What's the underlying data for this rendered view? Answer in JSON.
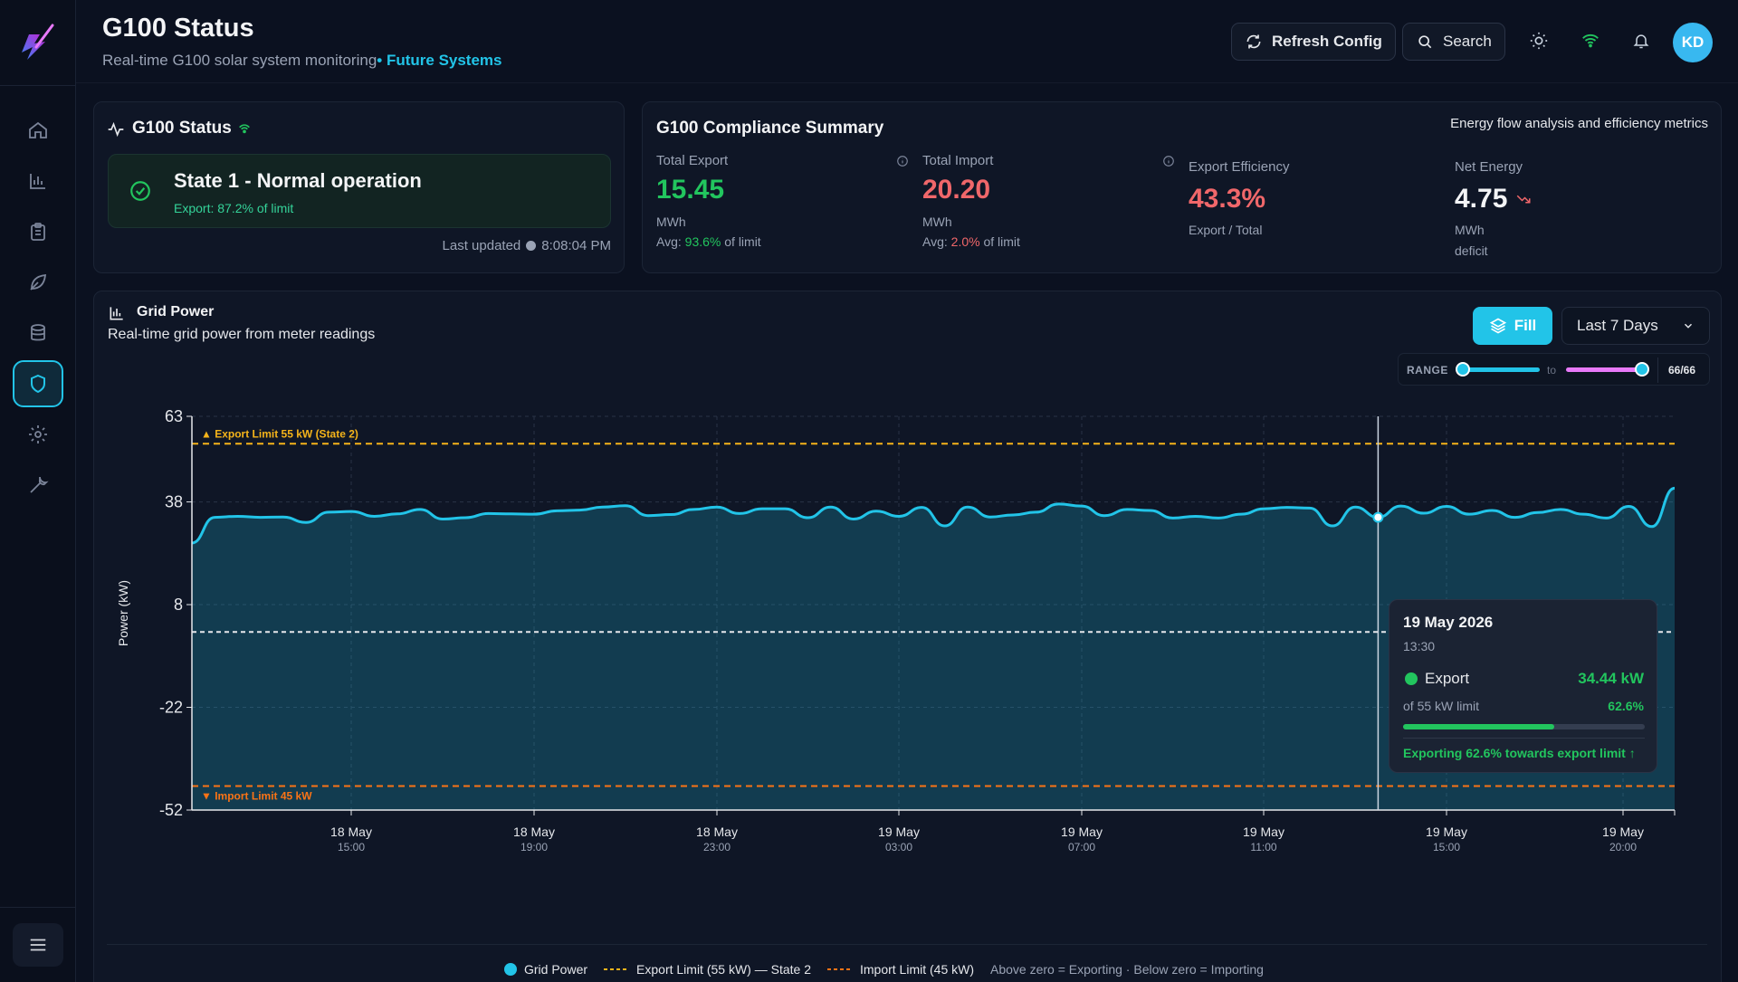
{
  "header": {
    "title": "G100 Status",
    "subtitle": "Real-time G100 solar system monitoring",
    "org": "• Future Systems",
    "refresh_label": "Refresh Config",
    "search_label": "Search",
    "avatar_initials": "KD"
  },
  "sidebar": {
    "items": [
      {
        "name": "home",
        "active": false
      },
      {
        "name": "analytics",
        "active": false
      },
      {
        "name": "reports",
        "active": false
      },
      {
        "name": "sustainability",
        "active": false
      },
      {
        "name": "database",
        "active": false
      },
      {
        "name": "compliance",
        "active": true
      },
      {
        "name": "settings",
        "active": false
      },
      {
        "name": "tools",
        "active": false
      }
    ]
  },
  "status_card": {
    "title": "G100 Status",
    "state": "State 1 - Normal operation",
    "export_note": "Export: 87.2% of limit",
    "last_updated_label": "Last updated",
    "last_updated_time": "8:08:04 PM"
  },
  "summary": {
    "title": "G100 Compliance Summary",
    "right_note": "Energy flow analysis and efficiency metrics",
    "total_export": {
      "label": "Total Export",
      "value": "15.45",
      "unit": "MWh",
      "avg_prefix": "Avg: ",
      "avg_value": "93.6%",
      "avg_suffix": " of limit"
    },
    "total_import": {
      "label": "Total Import",
      "value": "20.20",
      "unit": "MWh",
      "avg_prefix": "Avg: ",
      "avg_value": "2.0%",
      "avg_suffix": " of limit"
    },
    "export_efficiency": {
      "label": "Export Efficiency",
      "value": "43.3%",
      "sub": "Export / Total"
    },
    "net_energy": {
      "label": "Net Energy",
      "value": "4.75",
      "unit": "MWh",
      "sub": "deficit"
    }
  },
  "grid": {
    "title": "Grid Power",
    "subtitle": "Real-time grid power from meter readings",
    "fill_label": "Fill",
    "range_select": "Last 7 Days",
    "range_label": "RANGE",
    "range_to": "to",
    "range_count": "66/66",
    "ylabel": "Power (kW)",
    "export_limit_label": "▲ Export Limit 55 kW (State 2)",
    "import_limit_label": "▼ Import Limit 45 kW"
  },
  "tooltip": {
    "date": "19 May 2026",
    "time": "13:30",
    "label": "Export",
    "value": "34.44 kW",
    "of_limit": "of 55 kW limit",
    "pct": "62.6%",
    "pct_fraction": 0.626,
    "message": "Exporting 62.6% towards export limit ↑"
  },
  "legend": {
    "grid_power": "Grid Power",
    "export_limit": "Export Limit (55 kW) — State 2",
    "import_limit": "Import Limit (45 kW)",
    "note": "Above zero = Exporting · Below zero = Importing"
  },
  "colors": {
    "accent": "#22c4e8",
    "export_limit": "#f5b41a",
    "import_limit": "#f97316",
    "positive": "#22c55e",
    "negative": "#f0676a"
  },
  "chart_data": {
    "type": "area",
    "ylabel": "Power (kW)",
    "yticks": [
      63,
      38,
      8,
      -22,
      -52
    ],
    "ylim": [
      -52,
      63
    ],
    "xticks": [
      {
        "date": "18 May",
        "time": "15:00"
      },
      {
        "date": "18 May",
        "time": "19:00"
      },
      {
        "date": "18 May",
        "time": "23:00"
      },
      {
        "date": "19 May",
        "time": "03:00"
      },
      {
        "date": "19 May",
        "time": "07:00"
      },
      {
        "date": "19 May",
        "time": "11:00"
      },
      {
        "date": "19 May",
        "time": "15:00"
      },
      {
        "date": "19 May",
        "time": "20:00"
      }
    ],
    "reference_lines": [
      {
        "name": "Export Limit 55 kW (State 2)",
        "value": 55
      },
      {
        "name": "Import Limit 45 kW",
        "value": -45
      },
      {
        "name": "Zero",
        "value": 0
      }
    ],
    "series": [
      {
        "name": "Grid Power",
        "values": [
          26,
          33.5,
          33.8,
          33.5,
          33.6,
          32,
          35,
          35.2,
          33.8,
          34.5,
          35.8,
          33,
          33.4,
          34.6,
          34.5,
          34.4,
          35.4,
          35.6,
          36.5,
          36.9,
          34,
          34.3,
          35.8,
          36.5,
          34.6,
          36,
          36,
          33.4,
          36.5,
          33,
          35.3,
          33.8,
          36.4,
          31,
          36.5,
          33.6,
          34.2,
          35,
          37.4,
          36.8,
          34,
          35.8,
          35.5,
          33.3,
          33.8,
          33.3,
          34.4,
          36,
          36.4,
          36.2,
          31,
          36.5,
          33.5,
          36.8,
          34.7,
          36.7,
          34.4,
          35.5,
          33.5,
          34.9,
          35.8,
          34.4,
          33.3,
          36.7,
          30.8,
          42
        ]
      }
    ],
    "grid": true
  }
}
